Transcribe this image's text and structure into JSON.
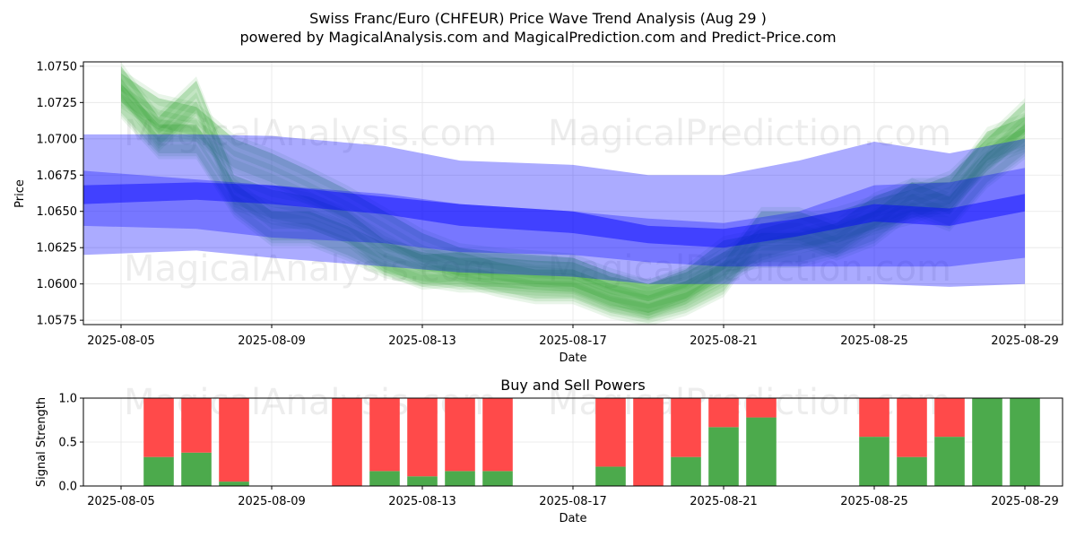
{
  "title": "Swiss Franc/Euro (CHFEUR) Price Wave Trend Analysis (Aug 29 )",
  "subtitle": "powered by MagicalAnalysis.com and MagicalPrediction.com and Predict-Price.com",
  "watermarks": [
    "MagicalAnalysis.com",
    "MagicalPrediction.com"
  ],
  "colors": {
    "green_band": "#2ca02c",
    "blue_band": "#0000ff",
    "buy": "#4caa4c",
    "sell": "#ff4a4a"
  },
  "chart_data": [
    {
      "type": "area",
      "name": "price-wave-chart",
      "xlabel": "Date",
      "ylabel": "Price",
      "x_range": [
        "2025-08-04",
        "2025-08-30"
      ],
      "ylim": [
        1.0572,
        1.0753
      ],
      "x_ticks": [
        "2025-08-05",
        "2025-08-09",
        "2025-08-13",
        "2025-08-17",
        "2025-08-21",
        "2025-08-25",
        "2025-08-29"
      ],
      "y_ticks": [
        1.0575,
        1.06,
        1.0625,
        1.065,
        1.0675,
        1.07,
        1.0725,
        1.075
      ],
      "grid": true,
      "green_paths": [
        {
          "x": [
            "2025-08-05",
            "2025-08-06",
            "2025-08-07",
            "2025-08-08",
            "2025-08-09",
            "2025-08-10",
            "2025-08-11",
            "2025-08-12",
            "2025-08-13",
            "2025-08-14",
            "2025-08-15",
            "2025-08-16",
            "2025-08-17",
            "2025-08-18",
            "2025-08-19",
            "2025-08-20",
            "2025-08-21",
            "2025-08-22",
            "2025-08-23",
            "2025-08-24",
            "2025-08-25",
            "2025-08-26",
            "2025-08-27",
            "2025-08-28",
            "2025-08-29"
          ],
          "y": [
            1.0735,
            1.0718,
            1.0712,
            1.069,
            1.068,
            1.0668,
            1.0655,
            1.064,
            1.0625,
            1.0615,
            1.0612,
            1.061,
            1.0608,
            1.0598,
            1.059,
            1.0598,
            1.0612,
            1.0628,
            1.0635,
            1.064,
            1.0648,
            1.0655,
            1.0665,
            1.069,
            1.0715
          ]
        },
        {
          "x": [
            "2025-08-05",
            "2025-08-06",
            "2025-08-07",
            "2025-08-08",
            "2025-08-09",
            "2025-08-10",
            "2025-08-11",
            "2025-08-12",
            "2025-08-13",
            "2025-08-14",
            "2025-08-15",
            "2025-08-16",
            "2025-08-17",
            "2025-08-18",
            "2025-08-19",
            "2025-08-20",
            "2025-08-21",
            "2025-08-22",
            "2025-08-23",
            "2025-08-24",
            "2025-08-25",
            "2025-08-26",
            "2025-08-27",
            "2025-08-28",
            "2025-08-29"
          ],
          "y": [
            1.074,
            1.0705,
            1.073,
            1.0665,
            1.0655,
            1.065,
            1.064,
            1.062,
            1.061,
            1.0612,
            1.0605,
            1.06,
            1.06,
            1.059,
            1.0585,
            1.0592,
            1.0605,
            1.064,
            1.064,
            1.063,
            1.064,
            1.066,
            1.066,
            1.0695,
            1.0705
          ]
        },
        {
          "x": [
            "2025-08-05",
            "2025-08-06",
            "2025-08-07",
            "2025-08-08",
            "2025-08-09",
            "2025-08-10",
            "2025-08-11",
            "2025-08-12",
            "2025-08-13",
            "2025-08-14",
            "2025-08-15",
            "2025-08-16",
            "2025-08-17",
            "2025-08-18",
            "2025-08-19",
            "2025-08-20",
            "2025-08-21",
            "2025-08-22",
            "2025-08-23",
            "2025-08-24",
            "2025-08-25",
            "2025-08-26",
            "2025-08-27",
            "2025-08-28",
            "2025-08-29"
          ],
          "y": [
            1.0728,
            1.07,
            1.07,
            1.066,
            1.064,
            1.064,
            1.063,
            1.0618,
            1.0612,
            1.0608,
            1.0608,
            1.0606,
            1.0605,
            1.0595,
            1.059,
            1.06,
            1.062,
            1.0625,
            1.0625,
            1.0632,
            1.065,
            1.066,
            1.065,
            1.068,
            1.07
          ]
        }
      ],
      "blue_bands": [
        {
          "x": [
            "2025-08-04",
            "2025-08-07",
            "2025-08-09",
            "2025-08-12",
            "2025-08-14",
            "2025-08-17",
            "2025-08-19",
            "2025-08-21",
            "2025-08-23",
            "2025-08-25",
            "2025-08-27",
            "2025-08-29"
          ],
          "upper": [
            1.0703,
            1.0703,
            1.0702,
            1.0695,
            1.0685,
            1.0682,
            1.0675,
            1.0675,
            1.0685,
            1.0698,
            1.069,
            1.07
          ],
          "lower": [
            1.062,
            1.0623,
            1.0618,
            1.0612,
            1.0608,
            1.0605,
            1.06,
            1.06,
            1.06,
            1.06,
            1.0598,
            1.06
          ]
        },
        {
          "x": [
            "2025-08-04",
            "2025-08-07",
            "2025-08-09",
            "2025-08-12",
            "2025-08-14",
            "2025-08-17",
            "2025-08-19",
            "2025-08-21",
            "2025-08-23",
            "2025-08-25",
            "2025-08-27",
            "2025-08-29"
          ],
          "upper": [
            1.0678,
            1.0672,
            1.0668,
            1.0662,
            1.0655,
            1.065,
            1.0645,
            1.0642,
            1.065,
            1.0668,
            1.067,
            1.068
          ],
          "lower": [
            1.064,
            1.0638,
            1.0632,
            1.0628,
            1.0622,
            1.062,
            1.0615,
            1.0612,
            1.0612,
            1.0612,
            1.0612,
            1.0618
          ]
        },
        {
          "x": [
            "2025-08-04",
            "2025-08-07",
            "2025-08-09",
            "2025-08-12",
            "2025-08-14",
            "2025-08-17",
            "2025-08-19",
            "2025-08-21",
            "2025-08-23",
            "2025-08-25",
            "2025-08-27",
            "2025-08-29"
          ],
          "upper": [
            1.0668,
            1.067,
            1.0668,
            1.066,
            1.0655,
            1.065,
            1.064,
            1.0638,
            1.0645,
            1.0655,
            1.0652,
            1.0662
          ],
          "lower": [
            1.0655,
            1.0658,
            1.0655,
            1.0648,
            1.064,
            1.0635,
            1.0628,
            1.0625,
            1.0633,
            1.0643,
            1.064,
            1.065
          ]
        }
      ]
    },
    {
      "type": "bar",
      "name": "buy-sell-powers-chart",
      "title": "Buy and Sell Powers",
      "xlabel": "Date",
      "ylabel": "Signal Strength",
      "x_range": [
        "2025-08-04.5",
        "2025-08-30"
      ],
      "ylim": [
        0,
        1
      ],
      "y_ticks": [
        0.0,
        0.5,
        1.0
      ],
      "x_ticks": [
        "2025-08-05",
        "2025-08-09",
        "2025-08-13",
        "2025-08-17",
        "2025-08-21",
        "2025-08-25",
        "2025-08-29"
      ],
      "categories": [
        "2025-08-06",
        "2025-08-07",
        "2025-08-08",
        "2025-08-11",
        "2025-08-12",
        "2025-08-13",
        "2025-08-14",
        "2025-08-15",
        "2025-08-18",
        "2025-08-19",
        "2025-08-20",
        "2025-08-21",
        "2025-08-22",
        "2025-08-25",
        "2025-08-26",
        "2025-08-27",
        "2025-08-28",
        "2025-08-29"
      ],
      "series": [
        {
          "name": "Buy",
          "values": [
            0.33,
            0.38,
            0.05,
            0.0,
            0.17,
            0.11,
            0.17,
            0.17,
            0.22,
            0.0,
            0.33,
            0.67,
            0.78,
            0.56,
            0.33,
            0.56,
            1.0,
            1.0
          ]
        },
        {
          "name": "Sell",
          "values": [
            0.67,
            0.62,
            0.95,
            1.0,
            0.83,
            0.89,
            0.83,
            0.83,
            0.78,
            1.0,
            0.67,
            0.33,
            0.22,
            0.44,
            0.67,
            0.44,
            0.0,
            0.0
          ]
        }
      ]
    }
  ]
}
